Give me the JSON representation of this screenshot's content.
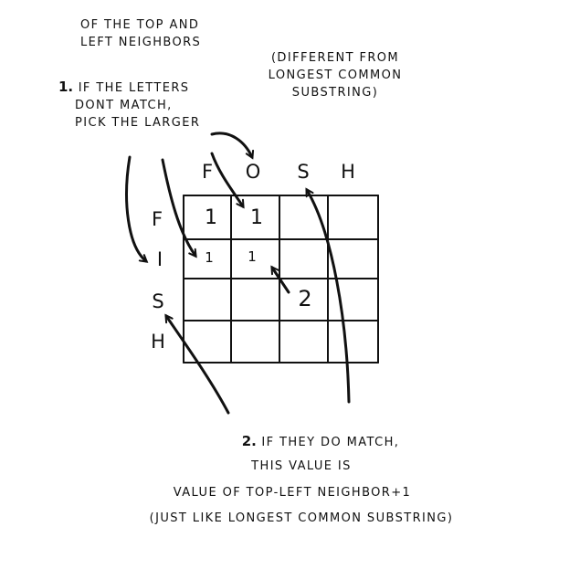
{
  "notes": {
    "intro": [
      "OF THE TOP AND",
      "LEFT NEIGHBORS"
    ],
    "different": [
      "(DIFFERENT FROM",
      "LONGEST COMMON",
      "SUBSTRING)"
    ],
    "rule1": {
      "number": "1.",
      "lines": [
        "IF THE LETTERS",
        "DONT MATCH,",
        "PICK THE LARGER"
      ]
    },
    "rule2": {
      "number": "2.",
      "lines": [
        "IF THEY DO MATCH,",
        "THIS VALUE IS",
        "VALUE OF TOP-LEFT NEIGHBOR+1",
        "(JUST LIKE LONGEST COMMON SUBSTRING)"
      ]
    }
  },
  "grid": {
    "columns": [
      "F",
      "O",
      "S",
      "H"
    ],
    "rows": [
      "F",
      "I",
      "S",
      "H"
    ],
    "cells": [
      [
        "1",
        "1",
        "",
        ""
      ],
      [
        "1",
        "1",
        "",
        ""
      ],
      [
        "",
        "",
        "2",
        ""
      ],
      [
        "",
        "",
        "",
        ""
      ]
    ]
  }
}
